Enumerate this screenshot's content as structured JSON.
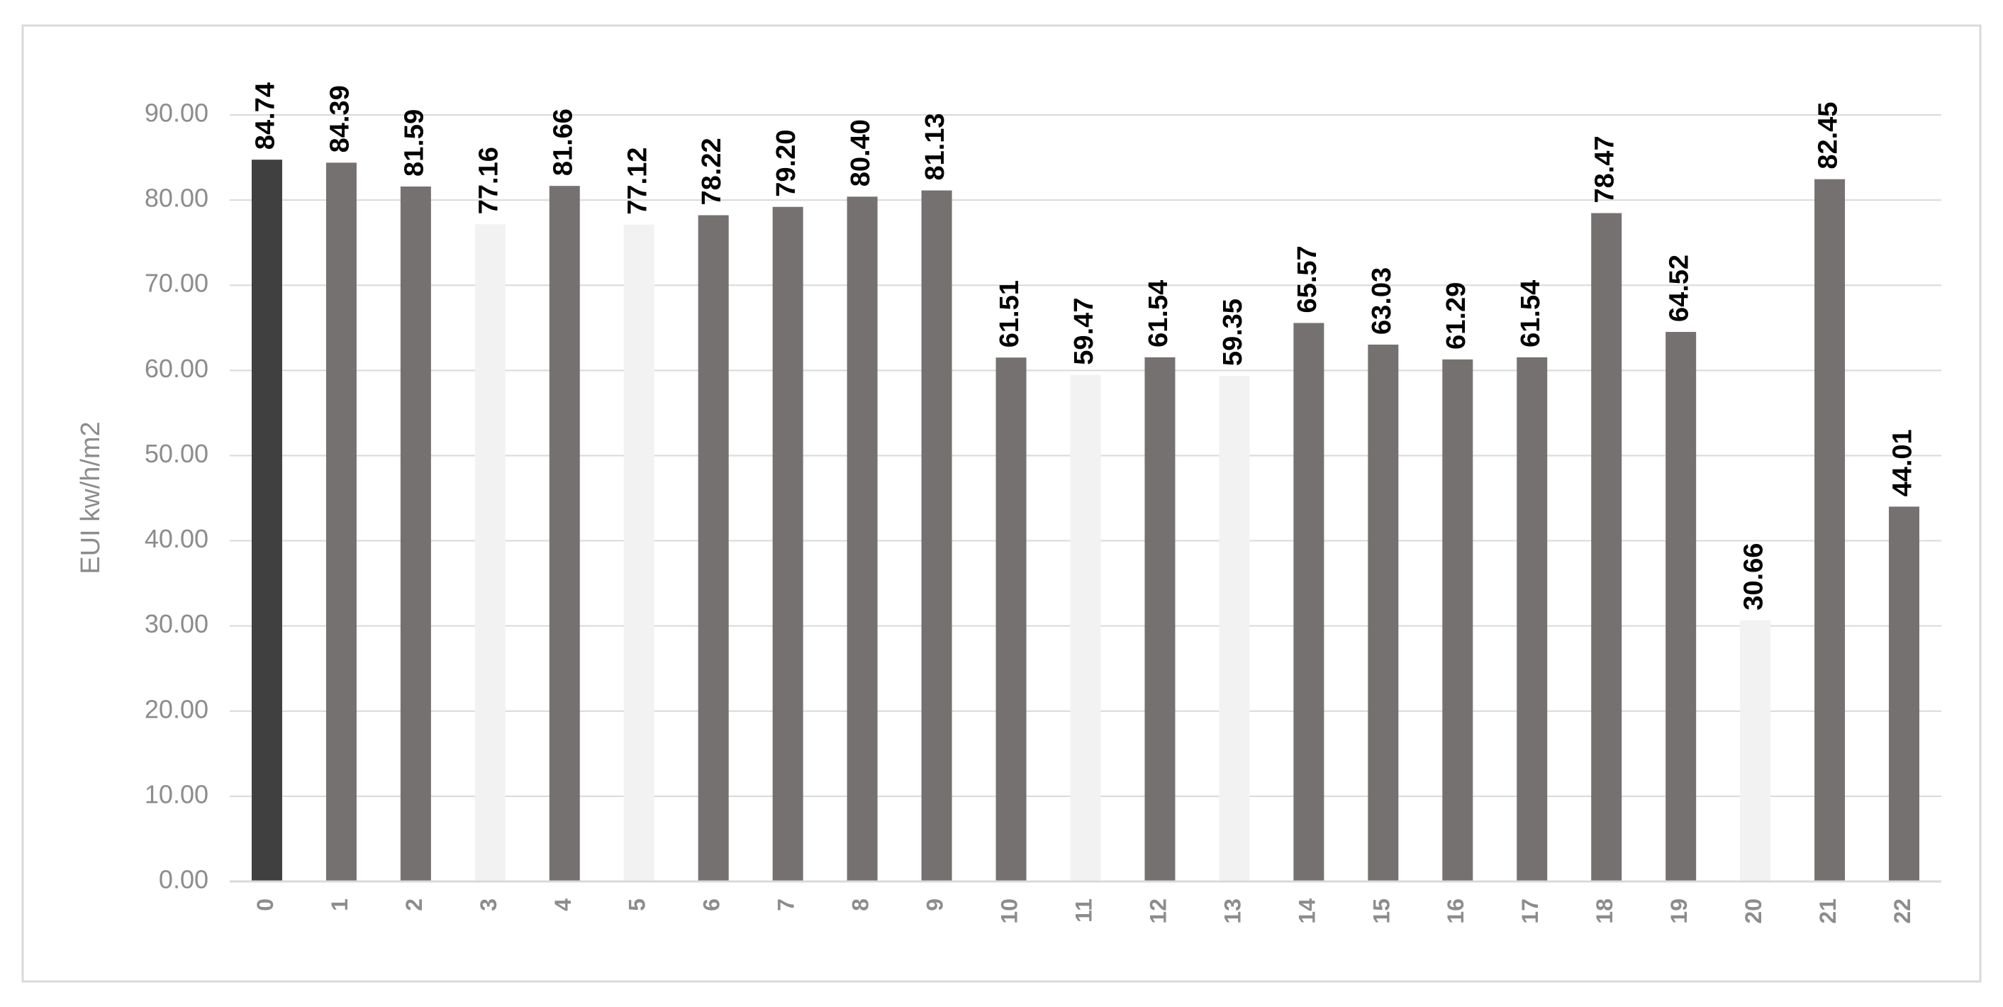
{
  "chart_data": {
    "type": "bar",
    "y_label": "EUI kw/h/m2",
    "categories": [
      "0",
      "1",
      "2",
      "3",
      "4",
      "5",
      "6",
      "7",
      "8",
      "9",
      "10",
      "11",
      "12",
      "13",
      "14",
      "15",
      "16",
      "17",
      "18",
      "19",
      "20",
      "21",
      "22"
    ],
    "values": [
      84.74,
      84.39,
      81.59,
      77.16,
      81.66,
      77.12,
      78.22,
      79.2,
      80.4,
      81.13,
      61.51,
      59.47,
      61.54,
      59.35,
      65.57,
      63.03,
      61.29,
      61.54,
      78.47,
      64.52,
      30.66,
      82.45,
      44.01
    ],
    "value_labels": [
      "84.74",
      "84.39",
      "81.59",
      "77.16",
      "81.66",
      "77.12",
      "78.22",
      "79.20",
      "80.40",
      "81.13",
      "61.51",
      "59.47",
      "61.54",
      "59.35",
      "65.57",
      "63.03",
      "61.29",
      "61.54",
      "78.47",
      "64.52",
      "30.66",
      "82.45",
      "44.01"
    ],
    "colors": [
      "#404040",
      "#767171",
      "#767171",
      "#f2f2f2",
      "#767171",
      "#f2f2f2",
      "#767171",
      "#767171",
      "#767171",
      "#767171",
      "#767171",
      "#f2f2f2",
      "#767171",
      "#f2f2f2",
      "#767171",
      "#767171",
      "#767171",
      "#767171",
      "#767171",
      "#767171",
      "#f2f2f2",
      "#767171",
      "#767171"
    ],
    "ylim": [
      0,
      90
    ],
    "yticks": [
      {
        "value": 0,
        "label": "0.00"
      },
      {
        "value": 10,
        "label": "10.00"
      },
      {
        "value": 20,
        "label": "20.00"
      },
      {
        "value": 30,
        "label": "30.00"
      },
      {
        "value": 40,
        "label": "40.00"
      },
      {
        "value": 50,
        "label": "50.00"
      },
      {
        "value": 60,
        "label": "60.00"
      },
      {
        "value": 70,
        "label": "70.00"
      },
      {
        "value": 80,
        "label": "80.00"
      },
      {
        "value": 90,
        "label": "90.00"
      }
    ],
    "grid": true
  }
}
